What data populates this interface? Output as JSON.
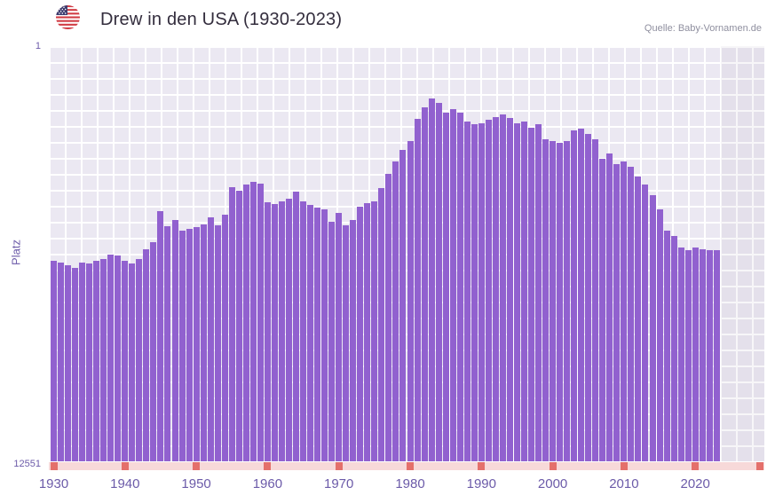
{
  "header": {
    "title": "Drew in den USA (1930-2023)",
    "source": "Quelle: Baby-Vornamen.de",
    "flag_icon": "us-flag-icon"
  },
  "axes": {
    "y_label": "Platz",
    "y_top_tick": "1",
    "y_bottom_tick": "12551",
    "x_ticks": [
      "1930",
      "1940",
      "1950",
      "1960",
      "1970",
      "1980",
      "1990",
      "2000",
      "2010",
      "2020"
    ]
  },
  "colors": {
    "bar": "#9161cf",
    "plot_background": "#ebe8f2",
    "grid": "#ffffff",
    "tick_text": "#6c5ba9",
    "axis_strip": "#f7d9d9",
    "axis_marker": "#e4706b",
    "title_text": "#332d3d",
    "source_text": "#8f8f9f"
  },
  "chart_data": {
    "type": "bar",
    "title": "Drew in den USA (1930-2023)",
    "xlabel": "",
    "ylabel": "Platz",
    "legend": "none",
    "grid": true,
    "y_axis": {
      "top": 1,
      "bottom": 12551,
      "inverted": true,
      "scale": "linear"
    },
    "bar_color": "#9161cf",
    "years": [
      1930,
      1931,
      1932,
      1933,
      1934,
      1935,
      1936,
      1937,
      1938,
      1939,
      1940,
      1941,
      1942,
      1943,
      1944,
      1945,
      1946,
      1947,
      1948,
      1949,
      1950,
      1951,
      1952,
      1953,
      1954,
      1955,
      1956,
      1957,
      1958,
      1959,
      1960,
      1961,
      1962,
      1963,
      1964,
      1965,
      1966,
      1967,
      1968,
      1969,
      1970,
      1971,
      1972,
      1973,
      1974,
      1975,
      1976,
      1977,
      1978,
      1979,
      1980,
      1981,
      1982,
      1983,
      1984,
      1985,
      1986,
      1987,
      1988,
      1989,
      1990,
      1991,
      1992,
      1993,
      1994,
      1995,
      1996,
      1997,
      1998,
      1999,
      2000,
      2001,
      2002,
      2003,
      2004,
      2005,
      2006,
      2007,
      2008,
      2009,
      2010,
      2011,
      2012,
      2013,
      2014,
      2015,
      2016,
      2017,
      2018,
      2019,
      2020,
      2021,
      2022,
      2023
    ],
    "ranks": [
      6500,
      6550,
      6630,
      6710,
      6550,
      6580,
      6500,
      6450,
      6310,
      6340,
      6500,
      6580,
      6450,
      6130,
      5940,
      4990,
      5440,
      5250,
      5570,
      5520,
      5470,
      5390,
      5170,
      5410,
      5100,
      4270,
      4380,
      4190,
      4110,
      4170,
      4720,
      4780,
      4700,
      4620,
      4400,
      4700,
      4800,
      4880,
      4940,
      5310,
      5040,
      5410,
      5250,
      4860,
      4750,
      4700,
      4300,
      3870,
      3500,
      3130,
      2870,
      2200,
      1860,
      1590,
      1730,
      2020,
      1910,
      2020,
      2280,
      2360,
      2340,
      2230,
      2150,
      2070,
      2180,
      2340,
      2280,
      2470,
      2360,
      2810,
      2870,
      2920,
      2870,
      2550,
      2500,
      2650,
      2810,
      3400,
      3240,
      3560,
      3480,
      3660,
      3930,
      4190,
      4510,
      4940,
      5570,
      5730,
      6100,
      6180,
      6100,
      6130,
      6160,
      6180
    ]
  }
}
